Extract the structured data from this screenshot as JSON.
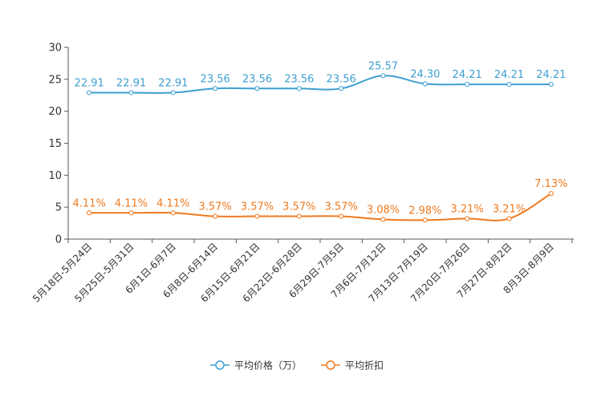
{
  "chart_data": {
    "type": "line",
    "title": "",
    "xlabel": "",
    "ylabel": "",
    "ylim": [
      0,
      30
    ],
    "yticks": [
      0,
      5,
      10,
      15,
      20,
      25,
      30
    ],
    "categories": [
      "5月18日-5月24日",
      "5月25日-5月31日",
      "6月1日-6月7日",
      "6月8日-6月14日",
      "6月15日-6月21日",
      "6月22日-6月28日",
      "6月29日-7月5日",
      "7月6日-7月12日",
      "7月13日-7月19日",
      "7月20日-7月26日",
      "7月27日-8月2日",
      "8月3日-8月9日"
    ],
    "series": [
      {
        "name": "平均价格（万）",
        "color": "#3d9fd1",
        "values": [
          22.91,
          22.91,
          22.91,
          23.56,
          23.56,
          23.56,
          23.56,
          25.57,
          24.3,
          24.21,
          24.21,
          24.21
        ],
        "labels": [
          "22.91",
          "22.91",
          "22.91",
          "23.56",
          "23.56",
          "23.56",
          "23.56",
          "25.57",
          "24.30",
          "24.21",
          "24.21",
          "24.21"
        ]
      },
      {
        "name": "平均折扣",
        "color": "#f07a1e",
        "values": [
          4.11,
          4.11,
          4.11,
          3.57,
          3.57,
          3.57,
          3.57,
          3.08,
          2.98,
          3.21,
          3.21,
          7.13
        ],
        "labels": [
          "4.11%",
          "4.11%",
          "4.11%",
          "3.57%",
          "3.57%",
          "3.57%",
          "3.57%",
          "3.08%",
          "2.98%",
          "3.21%",
          "3.21%",
          "7.13%"
        ]
      }
    ],
    "legend": {
      "position": "bottom-center",
      "items": [
        "平均价格（万）",
        "平均折扣"
      ]
    }
  }
}
